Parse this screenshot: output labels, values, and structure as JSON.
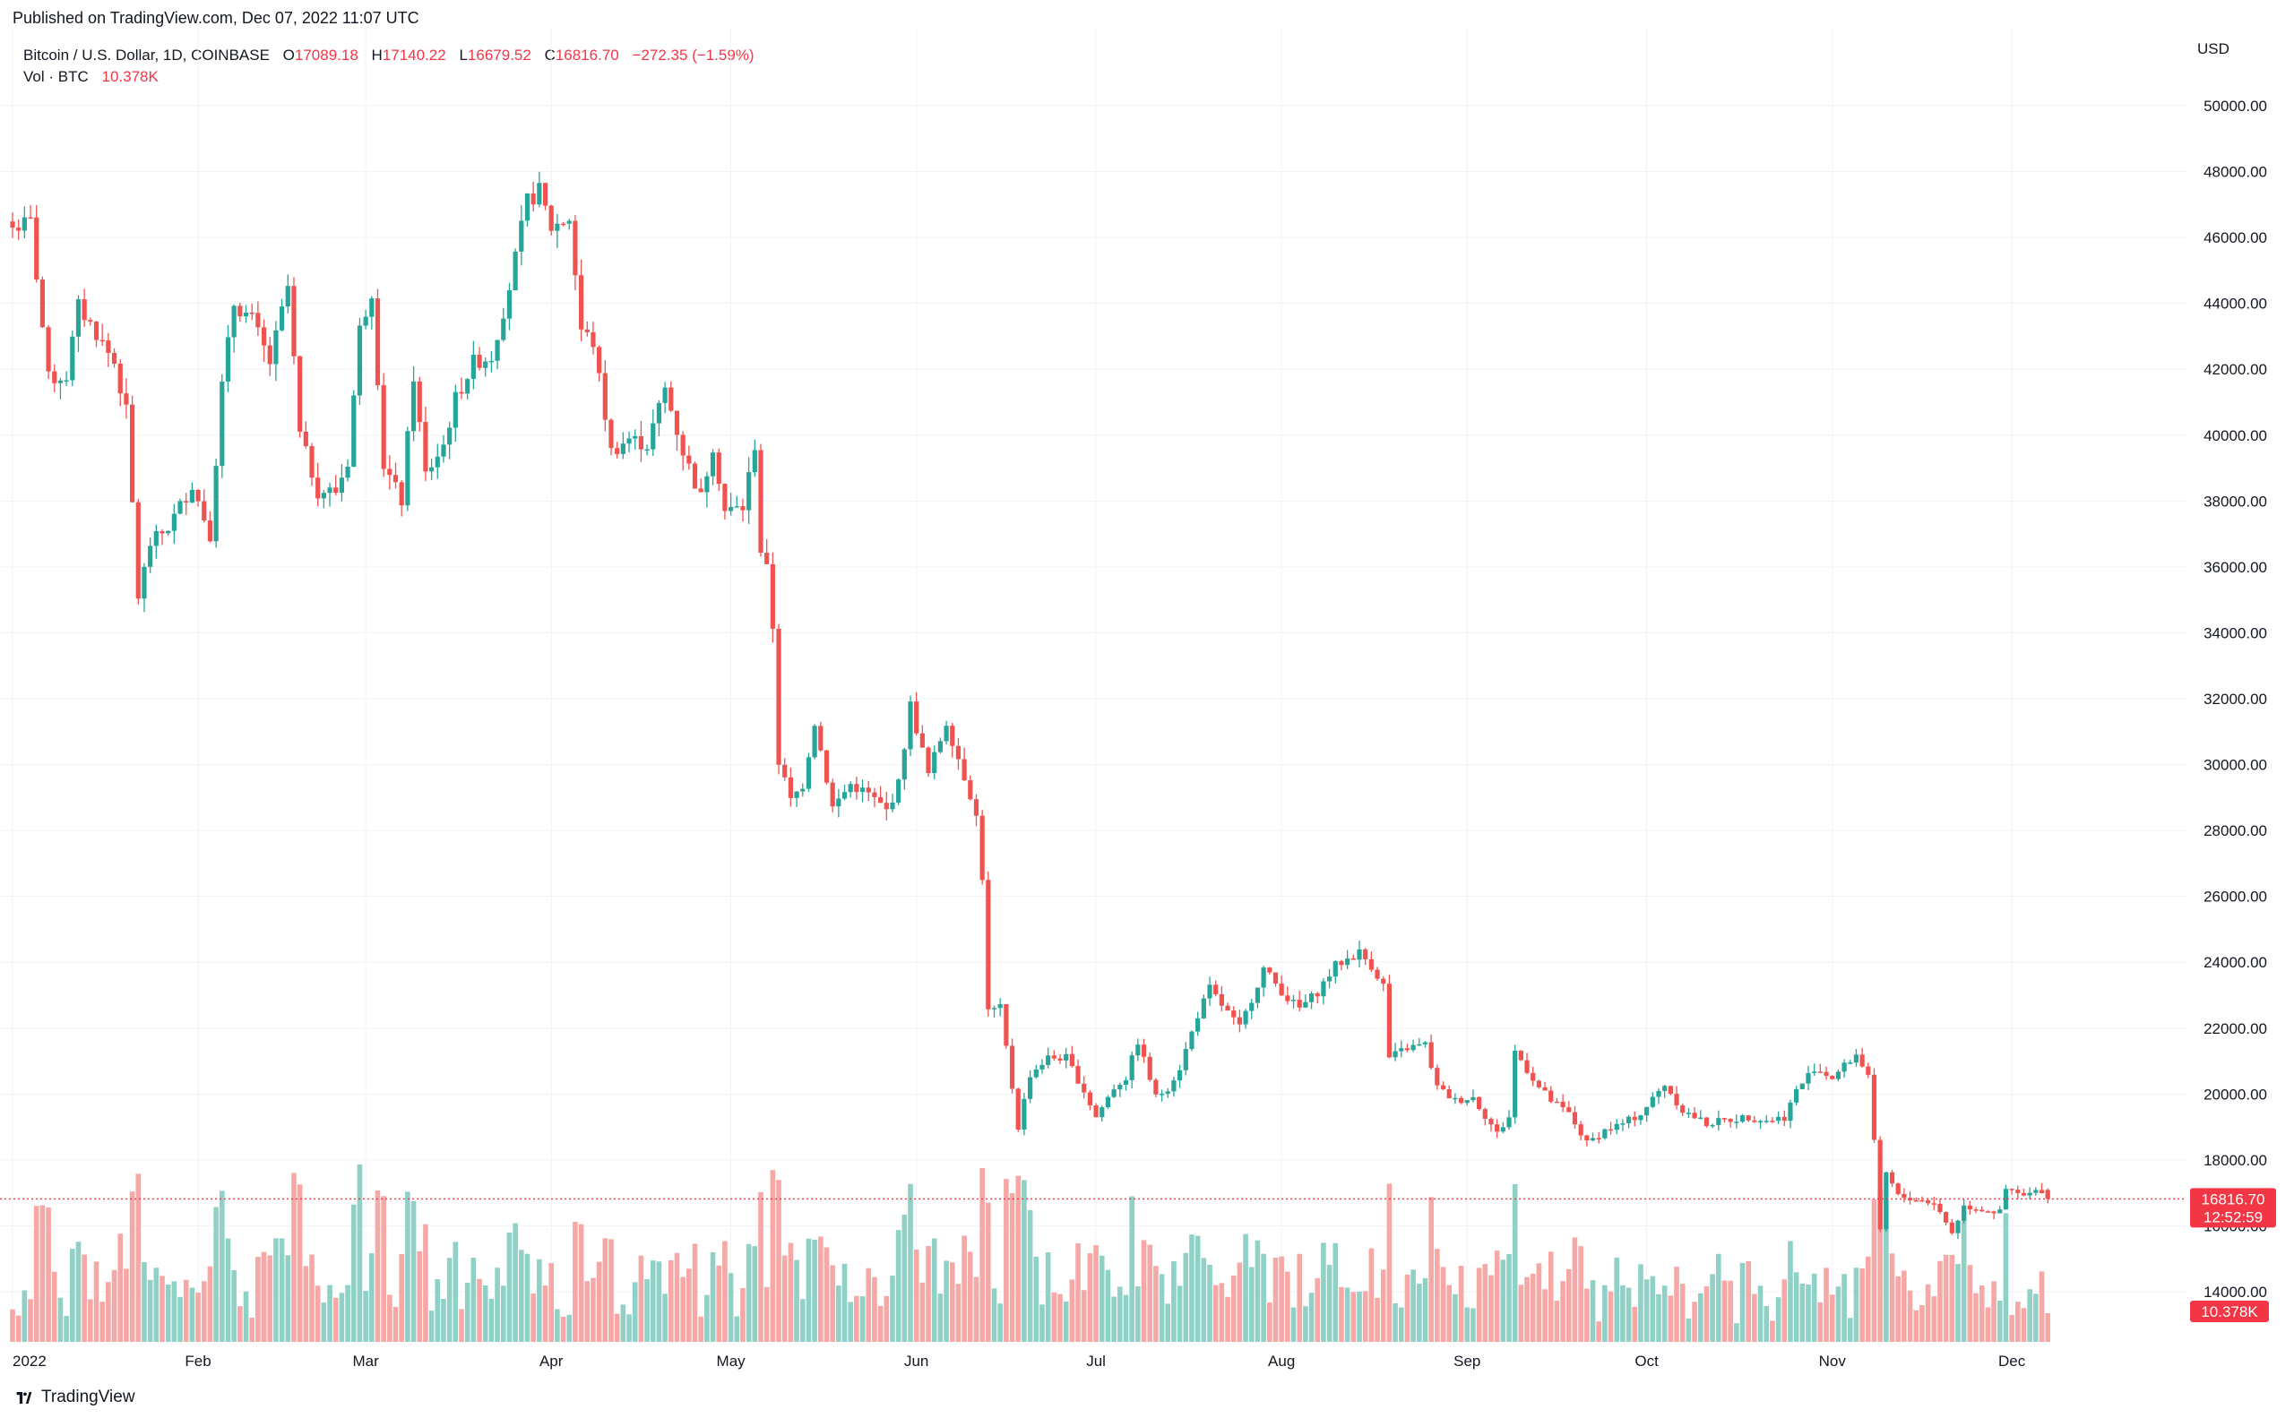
{
  "header": {
    "published": "Published on TradingView.com, Dec 07, 2022 11:07 UTC"
  },
  "legend": {
    "symbol": "Bitcoin / U.S. Dollar, 1D, COINBASE",
    "o_label": "O",
    "o_value": "17089.18",
    "h_label": "H",
    "h_value": "17140.22",
    "l_label": "L",
    "l_value": "16679.52",
    "c_label": "C",
    "c_value": "16816.70",
    "change": "−272.35 (−1.59%)",
    "vol_label": "Vol · BTC",
    "vol_value": "10.378K"
  },
  "price_axis": {
    "currency": "USD",
    "current_price": "16816.70",
    "countdown": "12:52:59",
    "volume_badge": "10.378K"
  },
  "footer": {
    "brand": "TradingView"
  },
  "colors": {
    "up": "#26a69a",
    "down": "#ef5350",
    "up_volume": "#8fd1c6",
    "down_volume": "#f5a8a6",
    "grid": "#f0f3fa",
    "badge": "#f23645"
  },
  "chart_data": {
    "type": "candlestick",
    "symbol": "Bitcoin / U.S. Dollar, 1D, COINBASE",
    "ylim": [
      13000,
      51000
    ],
    "y_ticks": [
      14000,
      16000,
      18000,
      20000,
      22000,
      24000,
      26000,
      28000,
      30000,
      32000,
      34000,
      36000,
      38000,
      40000,
      42000,
      44000,
      46000,
      48000,
      50000
    ],
    "y_tick_labels": [
      "14000.00",
      "16000.00",
      "18000.00",
      "20000.00",
      "22000.00",
      "24000.00",
      "26000.00",
      "28000.00",
      "30000.00",
      "32000.00",
      "34000.00",
      "36000.00",
      "38000.00",
      "40000.00",
      "42000.00",
      "44000.00",
      "46000.00",
      "48000.00",
      "50000.00"
    ],
    "x_tick_labels": [
      "2022",
      "Feb",
      "Mar",
      "Apr",
      "May",
      "Jun",
      "Jul",
      "Aug",
      "Sep",
      "Oct",
      "Nov",
      "Dec"
    ],
    "x_tick_days": [
      0,
      31,
      59,
      90,
      120,
      151,
      181,
      212,
      243,
      273,
      304,
      334
    ],
    "grid": true,
    "anchors": [
      [
        "2022-01-01",
        46300
      ],
      [
        "2022-01-04",
        46450
      ],
      [
        "2022-01-07",
        41700
      ],
      [
        "2022-01-10",
        41800
      ],
      [
        "2022-01-12",
        43900
      ],
      [
        "2022-01-15",
        43100
      ],
      [
        "2022-01-18",
        42200
      ],
      [
        "2022-01-20",
        40700
      ],
      [
        "2022-01-22",
        35100
      ],
      [
        "2022-01-24",
        36700
      ],
      [
        "2022-01-27",
        37200
      ],
      [
        "2022-01-31",
        38500
      ],
      [
        "2022-02-03",
        37000
      ],
      [
        "2022-02-05",
        41500
      ],
      [
        "2022-02-07",
        44000
      ],
      [
        "2022-02-10",
        43500
      ],
      [
        "2022-02-13",
        42200
      ],
      [
        "2022-02-16",
        44500
      ],
      [
        "2022-02-18",
        40000
      ],
      [
        "2022-02-21",
        38300
      ],
      [
        "2022-02-24",
        38300
      ],
      [
        "2022-02-26",
        39200
      ],
      [
        "2022-02-28",
        43200
      ],
      [
        "2022-03-02",
        44400
      ],
      [
        "2022-03-04",
        39100
      ],
      [
        "2022-03-07",
        38000
      ],
      [
        "2022-03-09",
        41800
      ],
      [
        "2022-03-11",
        38800
      ],
      [
        "2022-03-14",
        39700
      ],
      [
        "2022-03-16",
        41100
      ],
      [
        "2022-03-19",
        42200
      ],
      [
        "2022-03-22",
        42400
      ],
      [
        "2022-03-25",
        44500
      ],
      [
        "2022-03-28",
        47100
      ],
      [
        "2022-03-30",
        47400
      ],
      [
        "2022-04-01",
        46300
      ],
      [
        "2022-04-04",
        46600
      ],
      [
        "2022-04-06",
        43200
      ],
      [
        "2022-04-08",
        42800
      ],
      [
        "2022-04-11",
        39500
      ],
      [
        "2022-04-14",
        39900
      ],
      [
        "2022-04-17",
        39700
      ],
      [
        "2022-04-20",
        41400
      ],
      [
        "2022-04-23",
        39500
      ],
      [
        "2022-04-26",
        38100
      ],
      [
        "2022-04-28",
        39700
      ],
      [
        "2022-04-30",
        37700
      ],
      [
        "2022-05-03",
        37800
      ],
      [
        "2022-05-05",
        39700
      ],
      [
        "2022-05-06",
        36500
      ],
      [
        "2022-05-07",
        35900
      ],
      [
        "2022-05-08",
        34200
      ],
      [
        "2022-05-09",
        30100
      ],
      [
        "2022-05-11",
        28900
      ],
      [
        "2022-05-13",
        29400
      ],
      [
        "2022-05-15",
        31300
      ],
      [
        "2022-05-18",
        28700
      ],
      [
        "2022-05-21",
        29400
      ],
      [
        "2022-05-24",
        29100
      ],
      [
        "2022-05-27",
        28600
      ],
      [
        "2022-05-29",
        29400
      ],
      [
        "2022-05-31",
        31800
      ],
      [
        "2022-06-03",
        29700
      ],
      [
        "2022-06-06",
        31300
      ],
      [
        "2022-06-08",
        30200
      ],
      [
        "2022-06-10",
        29100
      ],
      [
        "2022-06-11",
        28400
      ],
      [
        "2022-06-12",
        26600
      ],
      [
        "2022-06-13",
        22500
      ],
      [
        "2022-06-15",
        22600
      ],
      [
        "2022-06-18",
        19000
      ],
      [
        "2022-06-20",
        20600
      ],
      [
        "2022-06-23",
        21100
      ],
      [
        "2022-06-26",
        21100
      ],
      [
        "2022-06-29",
        20100
      ],
      [
        "2022-07-01",
        19300
      ],
      [
        "2022-07-04",
        20200
      ],
      [
        "2022-07-06",
        20500
      ],
      [
        "2022-07-08",
        21600
      ],
      [
        "2022-07-11",
        19900
      ],
      [
        "2022-07-13",
        20200
      ],
      [
        "2022-07-15",
        20800
      ],
      [
        "2022-07-18",
        22400
      ],
      [
        "2022-07-20",
        23200
      ],
      [
        "2022-07-22",
        22700
      ],
      [
        "2022-07-25",
        22000
      ],
      [
        "2022-07-27",
        22900
      ],
      [
        "2022-07-29",
        23800
      ],
      [
        "2022-08-02",
        22900
      ],
      [
        "2022-08-04",
        22600
      ],
      [
        "2022-08-07",
        23100
      ],
      [
        "2022-08-10",
        23900
      ],
      [
        "2022-08-14",
        24300
      ],
      [
        "2022-08-16",
        23900
      ],
      [
        "2022-08-18",
        23300
      ],
      [
        "2022-08-19",
        21100
      ],
      [
        "2022-08-22",
        21400
      ],
      [
        "2022-08-25",
        21500
      ],
      [
        "2022-08-27",
        20200
      ],
      [
        "2022-08-30",
        19800
      ],
      [
        "2022-09-02",
        19900
      ],
      [
        "2022-09-06",
        18800
      ],
      [
        "2022-09-08",
        19300
      ],
      [
        "2022-09-09",
        21300
      ],
      [
        "2022-09-13",
        20200
      ],
      [
        "2022-09-15",
        19800
      ],
      [
        "2022-09-18",
        19400
      ],
      [
        "2022-09-21",
        18500
      ],
      [
        "2022-09-24",
        18900
      ],
      [
        "2022-09-27",
        19100
      ],
      [
        "2022-09-30",
        19400
      ],
      [
        "2022-10-04",
        20300
      ],
      [
        "2022-10-07",
        19500
      ],
      [
        "2022-10-11",
        19100
      ],
      [
        "2022-10-14",
        19200
      ],
      [
        "2022-10-18",
        19300
      ],
      [
        "2022-10-21",
        19200
      ],
      [
        "2022-10-24",
        19300
      ],
      [
        "2022-10-26",
        20100
      ],
      [
        "2022-10-29",
        20800
      ],
      [
        "2022-11-01",
        20500
      ],
      [
        "2022-11-05",
        21200
      ],
      [
        "2022-11-07",
        20600
      ],
      [
        "2022-11-08",
        18500
      ],
      [
        "2022-11-09",
        15800
      ],
      [
        "2022-11-10",
        17600
      ],
      [
        "2022-11-12",
        16900
      ],
      [
        "2022-11-15",
        16800
      ],
      [
        "2022-11-18",
        16700
      ],
      [
        "2022-11-21",
        15800
      ],
      [
        "2022-11-23",
        16600
      ],
      [
        "2022-11-26",
        16500
      ],
      [
        "2022-11-29",
        16400
      ],
      [
        "2022-11-30",
        17100
      ],
      [
        "2022-12-03",
        16900
      ],
      [
        "2022-12-06",
        17089.18
      ],
      [
        "2022-12-07",
        16816.7
      ]
    ],
    "last_candle": {
      "date": "2022-12-07",
      "open": 17089.18,
      "high": 17140.22,
      "low": 16679.52,
      "close": 16816.7
    },
    "last_volume_k": 10.378
  }
}
